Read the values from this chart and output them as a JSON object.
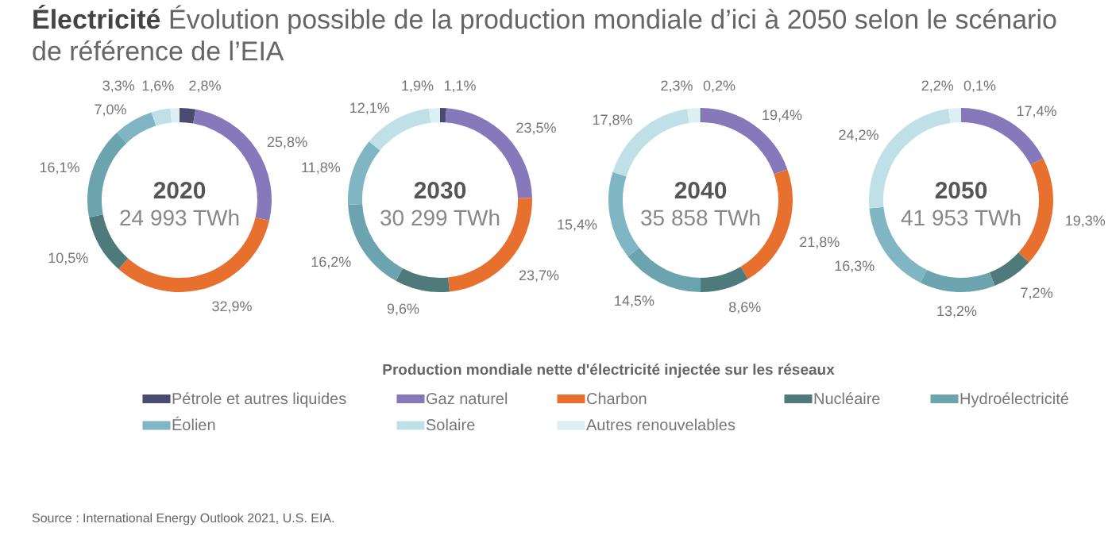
{
  "chart_data": [
    {
      "type": "donut",
      "title": "Électricité Évolution possible de la production mondiale d’ici à 2050 selon le scénario de référence de l’EIA",
      "subtitle": "2020",
      "annotations": [
        "24 993 TWh",
        "Source : International Energy Outlook 2021, U.S. EIA."
      ],
      "legend": "bottom",
      "legend_title": "Production mondiale nette d'électricité injectée sur les réseaux",
      "categories": [
        "Pétrole et autres liquides",
        "Gaz naturel",
        "Charbon",
        "Nucléaire",
        "Hydroélectricité",
        "Éolien",
        "Solaire",
        "Autres renouvelables"
      ],
      "values": [
        2.8,
        25.8,
        32.9,
        10.5,
        16.1,
        7.0,
        3.3,
        1.6
      ],
      "value_labels": [
        "2,8%",
        "25,8%",
        "32,9%",
        "10,5%",
        "16,1%",
        "7,0%",
        "3,3%",
        "1,6%"
      ],
      "colors": [
        "#4b4a6f",
        "#8579bb",
        "#e8702e",
        "#4f7a7b",
        "#6ba3ae",
        "#80b6c4",
        "#bfe0e7",
        "#dcf0f3"
      ]
    },
    {
      "type": "donut",
      "subtitle": "2030",
      "annotations": [
        "30 299 TWh"
      ],
      "categories": [
        null,
        null,
        null,
        null,
        null,
        null,
        null,
        null
      ],
      "values": [
        1.1,
        23.5,
        23.7,
        9.6,
        16.2,
        11.8,
        12.1,
        1.9
      ],
      "value_labels": [
        "1,1%",
        "23,5%",
        "23,7%",
        "9,6%",
        "16,2%",
        "11,8%",
        "12,1%",
        "1,9%"
      ],
      "colors": [
        "#4b4a6f",
        "#8579bb",
        "#e8702e",
        "#4f7a7b",
        "#6ba3ae",
        "#80b6c4",
        "#bfe0e7",
        "#dcf0f3"
      ]
    },
    {
      "type": "donut",
      "subtitle": "2040",
      "annotations": [
        "35 858 TWh"
      ],
      "categories": [
        null,
        null,
        null,
        null,
        null,
        null,
        null,
        null
      ],
      "values": [
        0.2,
        19.4,
        21.8,
        8.6,
        14.5,
        15.4,
        17.8,
        2.3
      ],
      "value_labels": [
        "0,2%",
        "19,4%",
        "21,8%",
        "8,6%",
        "14,5%",
        "15,4%",
        "17,8%",
        "2,3%"
      ],
      "colors": [
        "#4b4a6f",
        "#8579bb",
        "#e8702e",
        "#4f7a7b",
        "#6ba3ae",
        "#80b6c4",
        "#bfe0e7",
        "#dcf0f3"
      ]
    },
    {
      "type": "donut",
      "subtitle": "2050",
      "annotations": [
        "41 953 TWh"
      ],
      "categories": [
        null,
        null,
        null,
        null,
        null,
        null,
        null,
        null
      ],
      "values": [
        0.1,
        17.4,
        19.3,
        7.2,
        13.2,
        16.3,
        24.2,
        2.2
      ],
      "value_labels": [
        "0,1%",
        "17,4%",
        "19,3%",
        "7,2%",
        "13,2%",
        "16,3%",
        "24,2%",
        "2,2%"
      ],
      "colors": [
        "#4b4a6f",
        "#8579bb",
        "#e8702e",
        "#4f7a7b",
        "#6ba3ae",
        "#80b6c4",
        "#bfe0e7",
        "#dcf0f3"
      ]
    }
  ]
}
